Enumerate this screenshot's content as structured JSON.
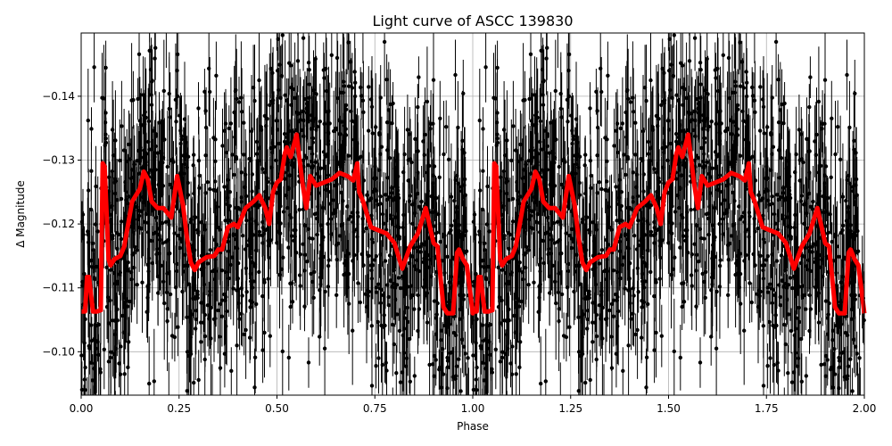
{
  "chart_data": {
    "type": "scatter",
    "title": "Light curve of ASCC 139830",
    "xlabel": "Phase",
    "ylabel": "Δ Magnitude",
    "xlim": [
      0.0,
      2.0
    ],
    "ylim": [
      -0.0932,
      -0.1499
    ],
    "y_inverted": true,
    "grid": true,
    "xticks": [
      "0.00",
      "0.25",
      "0.50",
      "0.75",
      "1.00",
      "1.25",
      "1.50",
      "1.75",
      "2.00"
    ],
    "yticks": [
      "−0.14",
      "−0.13",
      "−0.12",
      "−0.11",
      "−0.10"
    ],
    "xtick_values": [
      0,
      0.25,
      0.5,
      0.75,
      1.0,
      1.25,
      1.5,
      1.75,
      2.0
    ],
    "ytick_values": [
      -0.14,
      -0.13,
      -0.12,
      -0.11,
      -0.1
    ],
    "series": [
      {
        "name": "observations",
        "style": "black points with vertical error bars",
        "color": "#000000",
        "description": "Dense phase-folded photometry scattered between about -0.093 and -0.150 with error bars of roughly ±0.005-0.01, repeated over two cycles"
      },
      {
        "name": "binned model",
        "style": "thick red line",
        "color": "#ff0000",
        "x": [
          0.0,
          0.01,
          0.015,
          0.02,
          0.03,
          0.04,
          0.05,
          0.055,
          0.06,
          0.07,
          0.075,
          0.085,
          0.1,
          0.11,
          0.13,
          0.15,
          0.16,
          0.17,
          0.18,
          0.195,
          0.21,
          0.23,
          0.245,
          0.26,
          0.27,
          0.28,
          0.29,
          0.3,
          0.32,
          0.34,
          0.35,
          0.36,
          0.375,
          0.39,
          0.4,
          0.42,
          0.44,
          0.455,
          0.47,
          0.48,
          0.49,
          0.5,
          0.51,
          0.52,
          0.525,
          0.535,
          0.55,
          0.565,
          0.575,
          0.585,
          0.6,
          0.62,
          0.64,
          0.66,
          0.68,
          0.695,
          0.705,
          0.71,
          0.72,
          0.74,
          0.76,
          0.78,
          0.8,
          0.82,
          0.84,
          0.86,
          0.88,
          0.9,
          0.91,
          0.925,
          0.935,
          0.95,
          0.96,
          0.965,
          0.975,
          0.985,
          1.0
        ],
        "y": [
          -0.1063,
          -0.1063,
          -0.1117,
          -0.1117,
          -0.1063,
          -0.1063,
          -0.1065,
          -0.1295,
          -0.129,
          -0.1145,
          -0.1135,
          -0.1145,
          -0.115,
          -0.1165,
          -0.1235,
          -0.1255,
          -0.1282,
          -0.127,
          -0.1235,
          -0.1225,
          -0.1225,
          -0.121,
          -0.1275,
          -0.123,
          -0.118,
          -0.114,
          -0.1128,
          -0.114,
          -0.1148,
          -0.115,
          -0.116,
          -0.116,
          -0.1195,
          -0.12,
          -0.1195,
          -0.1225,
          -0.1235,
          -0.1245,
          -0.1225,
          -0.12,
          -0.125,
          -0.1265,
          -0.127,
          -0.131,
          -0.132,
          -0.1305,
          -0.134,
          -0.1265,
          -0.1225,
          -0.1275,
          -0.126,
          -0.1265,
          -0.127,
          -0.128,
          -0.1275,
          -0.1268,
          -0.1295,
          -0.125,
          -0.1235,
          -0.1195,
          -0.119,
          -0.1185,
          -0.117,
          -0.113,
          -0.1165,
          -0.1185,
          -0.1225,
          -0.117,
          -0.1165,
          -0.107,
          -0.106,
          -0.106,
          -0.1155,
          -0.116,
          -0.1145,
          -0.1135,
          -0.106
        ],
        "periodic": true
      }
    ]
  }
}
